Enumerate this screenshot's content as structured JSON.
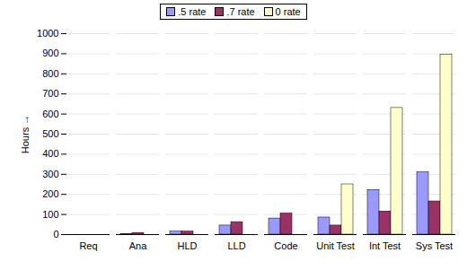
{
  "chart_data": {
    "type": "bar",
    "y_label": "Hours",
    "categories": [
      "Req",
      "Ana",
      "HLD",
      "LLD",
      "Code",
      "Unit Test",
      "Int Test",
      "Sys Test"
    ],
    "series": [
      {
        "name": ".5 rate",
        "color": "#9999ff",
        "values": [
          0,
          3,
          15,
          45,
          80,
          85,
          222,
          310
        ]
      },
      {
        "name": ".7 rate",
        "color": "#993366",
        "values": [
          0,
          8,
          15,
          62,
          105,
          45,
          115,
          165
        ]
      },
      {
        "name": "0 rate",
        "color": "#ffffcc",
        "values": [
          0,
          0,
          0,
          0,
          0,
          250,
          630,
          895
        ]
      }
    ],
    "ylim": [
      0,
      1000
    ],
    "yticks": [
      0,
      100,
      200,
      300,
      400,
      500,
      600,
      700,
      800,
      900,
      1000
    ],
    "grid": true,
    "legend": "top"
  }
}
